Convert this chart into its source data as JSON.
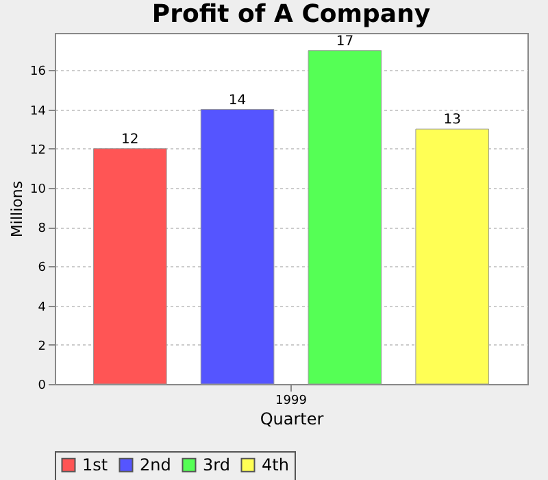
{
  "chart_data": {
    "type": "bar",
    "title": "Profit of A Company",
    "xlabel": "Quarter",
    "ylabel": "Millions",
    "categories": [
      "1999"
    ],
    "series": [
      {
        "name": "1st",
        "color": "#ff5555",
        "values": [
          12
        ]
      },
      {
        "name": "2nd",
        "color": "#5555ff",
        "values": [
          14
        ]
      },
      {
        "name": "3rd",
        "color": "#55ff55",
        "values": [
          17
        ]
      },
      {
        "name": "4th",
        "color": "#ffff55",
        "values": [
          13
        ]
      }
    ],
    "ylim": [
      0,
      17.9
    ],
    "yticks": [
      0,
      2,
      4,
      6,
      8,
      10,
      12,
      14,
      16
    ],
    "grid": "y",
    "legend": "bottom",
    "data_labels": true
  }
}
